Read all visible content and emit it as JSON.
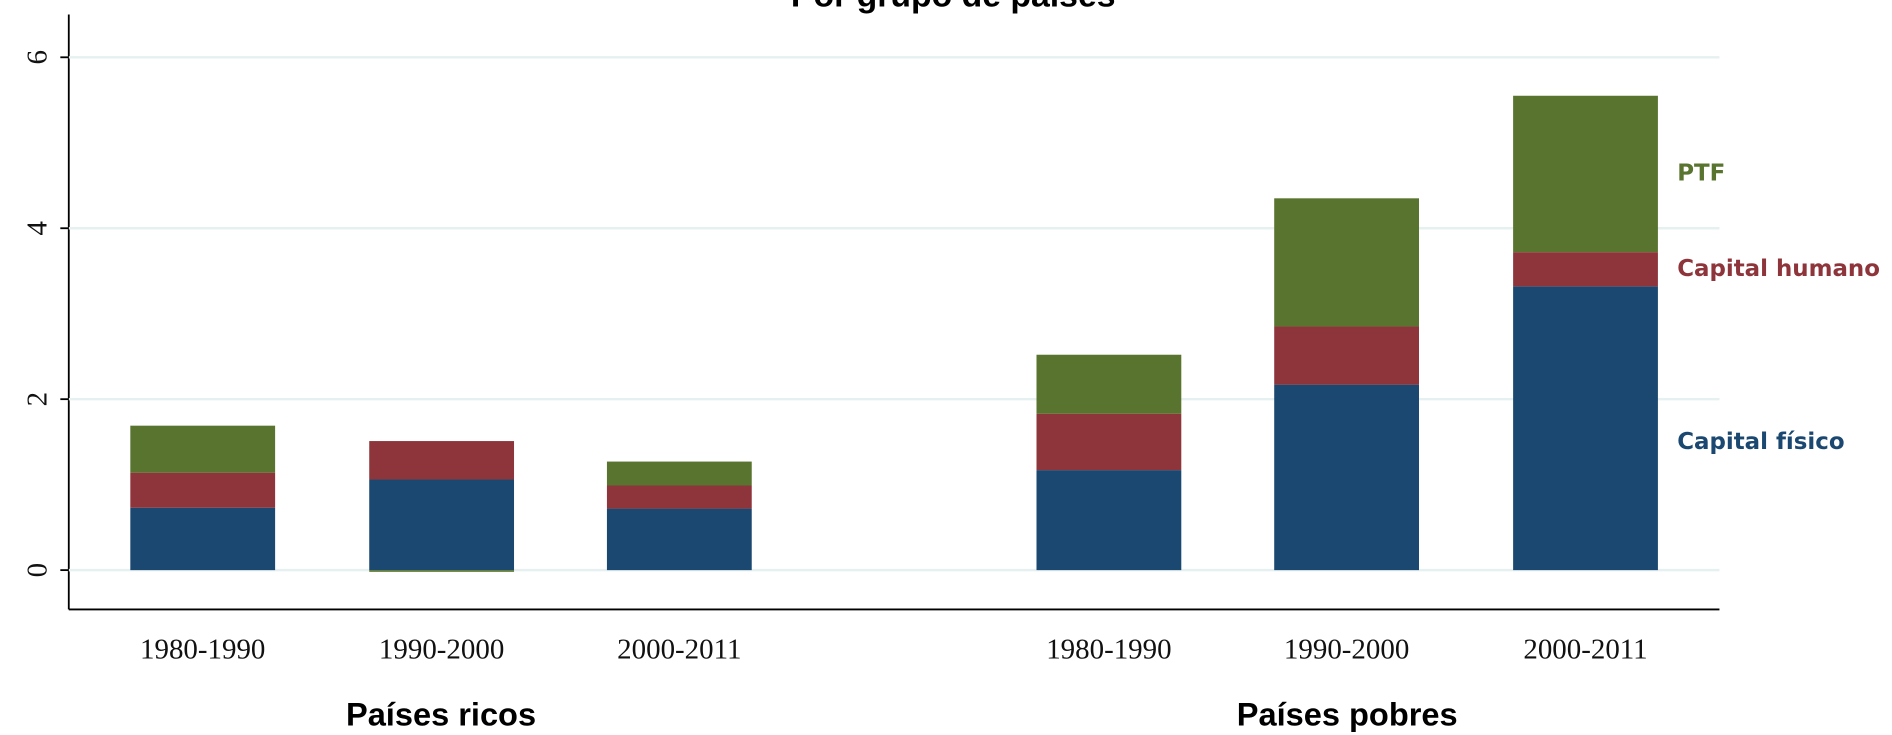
{
  "chart_data": {
    "type": "stacked_bar",
    "title": "Por grupo de países",
    "categories": [
      "1980-1990",
      "1990-2000",
      "2000-2011",
      "1980-1990",
      "1990-2000",
      "2000-2011"
    ],
    "groups": [
      "Países ricos",
      "Países pobres"
    ],
    "series": [
      {
        "name": "Capital físico",
        "color": "#1b4870",
        "values": [
          0.73,
          1.06,
          0.72,
          1.17,
          2.17,
          3.32
        ]
      },
      {
        "name": "Capital humano",
        "color": "#8e353b",
        "values": [
          0.41,
          0.45,
          0.27,
          0.66,
          0.68,
          0.4
        ]
      },
      {
        "name": "PTF",
        "color": "#58742e",
        "values": [
          0.55,
          -0.02,
          0.28,
          0.69,
          1.5,
          1.83
        ]
      }
    ],
    "ylim": [
      -0.46,
      6.5
    ],
    "yticks": [
      0,
      2,
      4,
      6
    ],
    "grid": true
  }
}
